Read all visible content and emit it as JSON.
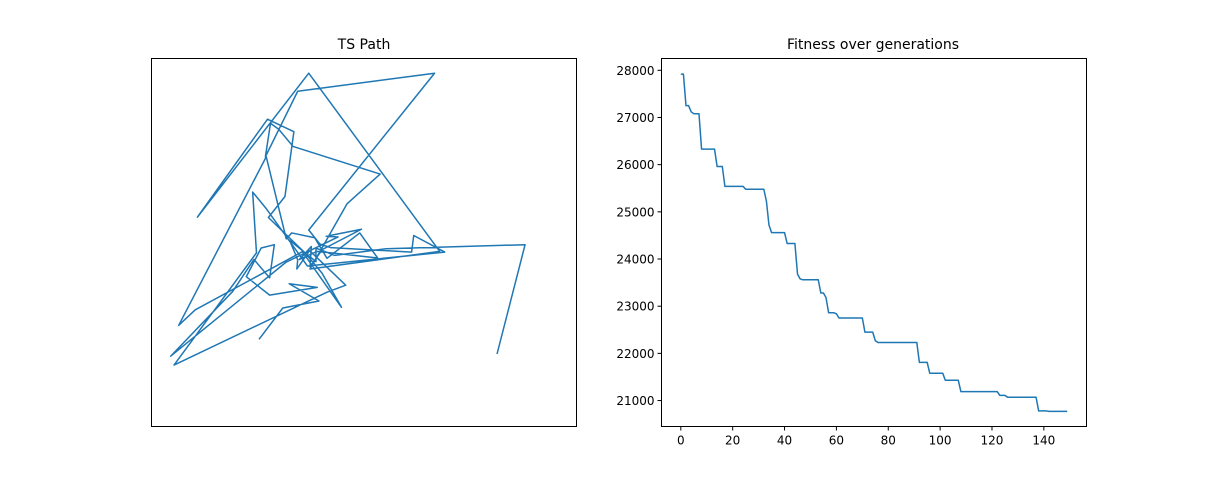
{
  "chart_data": [
    {
      "type": "line",
      "title": "TS Path",
      "xlabel": "",
      "ylabel": "",
      "show_ticks": false,
      "grid": false,
      "xlim": [
        0,
        100
      ],
      "ylim": [
        0,
        100
      ],
      "series": [
        {
          "color": "#1f77b4",
          "points": [
            [
              25.3,
              23.7
            ],
            [
              30.9,
              32.2
            ],
            [
              39.4,
              34.1
            ],
            [
              32.4,
              38.8
            ],
            [
              39.0,
              37.8
            ],
            [
              27.8,
              35.7
            ],
            [
              22.3,
              40.7
            ],
            [
              25.8,
              48.5
            ],
            [
              28.9,
              49.4
            ],
            [
              27.8,
              40.4
            ],
            [
              24.1,
              45.4
            ],
            [
              19.1,
              36.7
            ],
            [
              4.5,
              19.1
            ],
            [
              31.6,
              44.6
            ],
            [
              43.9,
              51.5
            ],
            [
              41.1,
              51.7
            ],
            [
              49.4,
              53.6
            ],
            [
              40.2,
              48.1
            ],
            [
              37.3,
              43.4
            ],
            [
              37.6,
              48.9
            ],
            [
              34.8,
              45.4
            ],
            [
              39.0,
              47.6
            ],
            [
              53.2,
              45.8
            ],
            [
              49.0,
              52.6
            ],
            [
              41.3,
              45.7
            ],
            [
              38.4,
              51.3
            ],
            [
              33.0,
              52.6
            ],
            [
              31.7,
              51.0
            ],
            [
              27.0,
              73.3
            ],
            [
              6.4,
              27.5
            ],
            [
              10.3,
              31.7
            ],
            [
              35.5,
              47.5
            ],
            [
              44.7,
              32.4
            ],
            [
              40.1,
              41.7
            ],
            [
              36.1,
              47.2
            ],
            [
              27.5,
              56.8
            ],
            [
              31.4,
              62.5
            ],
            [
              33.5,
              80.1
            ],
            [
              27.3,
              83.5
            ],
            [
              10.8,
              56.9
            ],
            [
              37.0,
              96.0
            ],
            [
              67.8,
              47.6
            ],
            [
              37.3,
              42.8
            ],
            [
              46.0,
              60.5
            ],
            [
              53.8,
              68.6
            ],
            [
              33.3,
              76.1
            ],
            [
              29.9,
              80.8
            ],
            [
              28.0,
              82.4
            ],
            [
              26.8,
              73.3
            ],
            [
              34.4,
              91.1
            ],
            [
              66.6,
              96.0
            ],
            [
              37.0,
              53.4
            ],
            [
              39.6,
              49.6
            ],
            [
              42.2,
              48.6
            ],
            [
              61.2,
              47.4
            ],
            [
              61.7,
              51.9
            ],
            [
              69.0,
              47.4
            ],
            [
              36.7,
              43.6
            ],
            [
              27.0,
              59.2
            ],
            [
              23.8,
              63.7
            ],
            [
              24.7,
              47.2
            ],
            [
              5.3,
              16.7
            ],
            [
              41.3,
              36.5
            ],
            [
              45.7,
              38.4
            ],
            [
              37.2,
              47.8
            ],
            [
              34.2,
              42.8
            ],
            [
              34.4,
              45.3
            ],
            [
              32.5,
              50.6
            ],
            [
              38.7,
              44.8
            ],
            [
              38.7,
              48.5
            ],
            [
              43.1,
              46.5
            ],
            [
              55.2,
              48.3
            ],
            [
              87.9,
              49.4
            ],
            [
              81.3,
              19.7
            ]
          ]
        }
      ]
    },
    {
      "type": "line",
      "title": "Fitness over generations",
      "xlabel": "",
      "ylabel": "",
      "grid": false,
      "xlim": [
        -7.45,
        156.45
      ],
      "ylim": [
        20450,
        28250
      ],
      "xticks": [
        0,
        20,
        40,
        60,
        80,
        100,
        120,
        140
      ],
      "yticks": [
        21000,
        22000,
        23000,
        24000,
        25000,
        26000,
        27000,
        28000
      ],
      "series": [
        {
          "color": "#1f77b4",
          "points": [
            [
              0,
              27920
            ],
            [
              1,
              27920
            ],
            [
              2,
              27250
            ],
            [
              3,
              27250
            ],
            [
              4,
              27120
            ],
            [
              5,
              27080
            ],
            [
              6,
              27080
            ],
            [
              7,
              27080
            ],
            [
              8,
              26330
            ],
            [
              9,
              26330
            ],
            [
              10,
              26330
            ],
            [
              11,
              26330
            ],
            [
              12,
              26330
            ],
            [
              13,
              26330
            ],
            [
              14,
              25960
            ],
            [
              15,
              25960
            ],
            [
              16,
              25960
            ],
            [
              17,
              25540
            ],
            [
              18,
              25540
            ],
            [
              19,
              25540
            ],
            [
              20,
              25540
            ],
            [
              21,
              25540
            ],
            [
              22,
              25540
            ],
            [
              23,
              25540
            ],
            [
              24,
              25540
            ],
            [
              25,
              25480
            ],
            [
              26,
              25480
            ],
            [
              27,
              25480
            ],
            [
              28,
              25480
            ],
            [
              29,
              25480
            ],
            [
              30,
              25480
            ],
            [
              31,
              25480
            ],
            [
              32,
              25480
            ],
            [
              33,
              25230
            ],
            [
              34,
              24720
            ],
            [
              35,
              24560
            ],
            [
              36,
              24560
            ],
            [
              37,
              24560
            ],
            [
              38,
              24560
            ],
            [
              39,
              24560
            ],
            [
              40,
              24560
            ],
            [
              41,
              24330
            ],
            [
              42,
              24330
            ],
            [
              43,
              24330
            ],
            [
              44,
              24330
            ],
            [
              45,
              23680
            ],
            [
              46,
              23580
            ],
            [
              47,
              23560
            ],
            [
              48,
              23560
            ],
            [
              49,
              23560
            ],
            [
              50,
              23560
            ],
            [
              51,
              23560
            ],
            [
              52,
              23560
            ],
            [
              53,
              23560
            ],
            [
              54,
              23280
            ],
            [
              55,
              23280
            ],
            [
              56,
              23180
            ],
            [
              57,
              22860
            ],
            [
              58,
              22860
            ],
            [
              59,
              22860
            ],
            [
              60,
              22840
            ],
            [
              61,
              22750
            ],
            [
              62,
              22750
            ],
            [
              63,
              22750
            ],
            [
              64,
              22750
            ],
            [
              65,
              22750
            ],
            [
              66,
              22750
            ],
            [
              67,
              22750
            ],
            [
              68,
              22750
            ],
            [
              69,
              22750
            ],
            [
              70,
              22750
            ],
            [
              71,
              22450
            ],
            [
              72,
              22450
            ],
            [
              73,
              22450
            ],
            [
              74,
              22450
            ],
            [
              75,
              22270
            ],
            [
              76,
              22230
            ],
            [
              77,
              22230
            ],
            [
              78,
              22230
            ],
            [
              79,
              22230
            ],
            [
              80,
              22230
            ],
            [
              81,
              22230
            ],
            [
              82,
              22230
            ],
            [
              83,
              22230
            ],
            [
              84,
              22230
            ],
            [
              85,
              22230
            ],
            [
              86,
              22230
            ],
            [
              87,
              22230
            ],
            [
              88,
              22230
            ],
            [
              89,
              22230
            ],
            [
              90,
              22230
            ],
            [
              91,
              22230
            ],
            [
              92,
              21810
            ],
            [
              93,
              21810
            ],
            [
              94,
              21810
            ],
            [
              95,
              21810
            ],
            [
              96,
              21580
            ],
            [
              97,
              21580
            ],
            [
              98,
              21580
            ],
            [
              99,
              21580
            ],
            [
              100,
              21580
            ],
            [
              101,
              21580
            ],
            [
              102,
              21430
            ],
            [
              103,
              21430
            ],
            [
              104,
              21430
            ],
            [
              105,
              21430
            ],
            [
              106,
              21430
            ],
            [
              107,
              21430
            ],
            [
              108,
              21190
            ],
            [
              109,
              21190
            ],
            [
              110,
              21190
            ],
            [
              111,
              21190
            ],
            [
              112,
              21190
            ],
            [
              113,
              21190
            ],
            [
              114,
              21190
            ],
            [
              115,
              21190
            ],
            [
              116,
              21190
            ],
            [
              117,
              21190
            ],
            [
              118,
              21190
            ],
            [
              119,
              21190
            ],
            [
              120,
              21190
            ],
            [
              121,
              21190
            ],
            [
              122,
              21190
            ],
            [
              123,
              21110
            ],
            [
              124,
              21110
            ],
            [
              125,
              21110
            ],
            [
              126,
              21070
            ],
            [
              127,
              21070
            ],
            [
              128,
              21070
            ],
            [
              129,
              21070
            ],
            [
              130,
              21070
            ],
            [
              131,
              21070
            ],
            [
              132,
              21070
            ],
            [
              133,
              21070
            ],
            [
              134,
              21070
            ],
            [
              135,
              21070
            ],
            [
              136,
              21070
            ],
            [
              137,
              21070
            ],
            [
              138,
              20780
            ],
            [
              139,
              20780
            ],
            [
              140,
              20780
            ],
            [
              141,
              20780
            ],
            [
              142,
              20770
            ],
            [
              143,
              20770
            ],
            [
              144,
              20770
            ],
            [
              145,
              20770
            ],
            [
              146,
              20770
            ],
            [
              147,
              20770
            ],
            [
              148,
              20770
            ],
            [
              149,
              20770
            ]
          ]
        }
      ]
    }
  ]
}
